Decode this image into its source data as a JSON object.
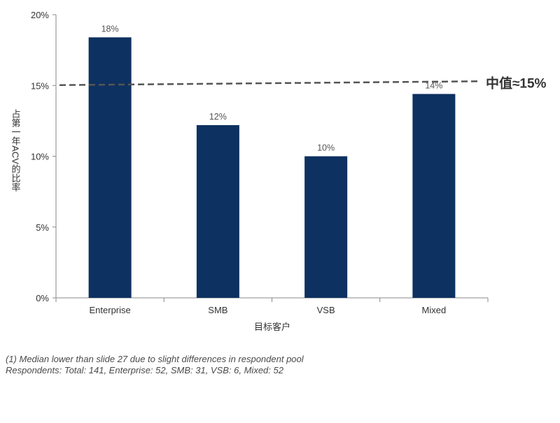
{
  "chart_data": {
    "type": "bar",
    "categories": [
      "Enterprise",
      "SMB",
      "VSB",
      "Mixed"
    ],
    "values": [
      18.4,
      12.2,
      10.0,
      14.4
    ],
    "value_labels": [
      "18%",
      "12%",
      "10%",
      "14%"
    ],
    "ylim": [
      0,
      20
    ],
    "y_ticks": [
      0,
      5,
      10,
      15,
      20
    ],
    "y_tick_labels": [
      "0%",
      "5%",
      "10%",
      "15%",
      "20%"
    ],
    "ylabel": "占第一年ACV的比率",
    "xlabel": "目标客户",
    "bar_color": "#0d3160",
    "reference_line": {
      "value": 15,
      "label": "中值≈15%",
      "color": "#555555",
      "style": "dashed"
    },
    "grid": false,
    "legend": "none"
  },
  "footnotes": [
    "(1) Median lower than slide 27 due to slight differences in respondent pool",
    "Respondents: Total: 141, Enterprise: 52, SMB: 31, VSB: 6, Mixed: 52"
  ]
}
